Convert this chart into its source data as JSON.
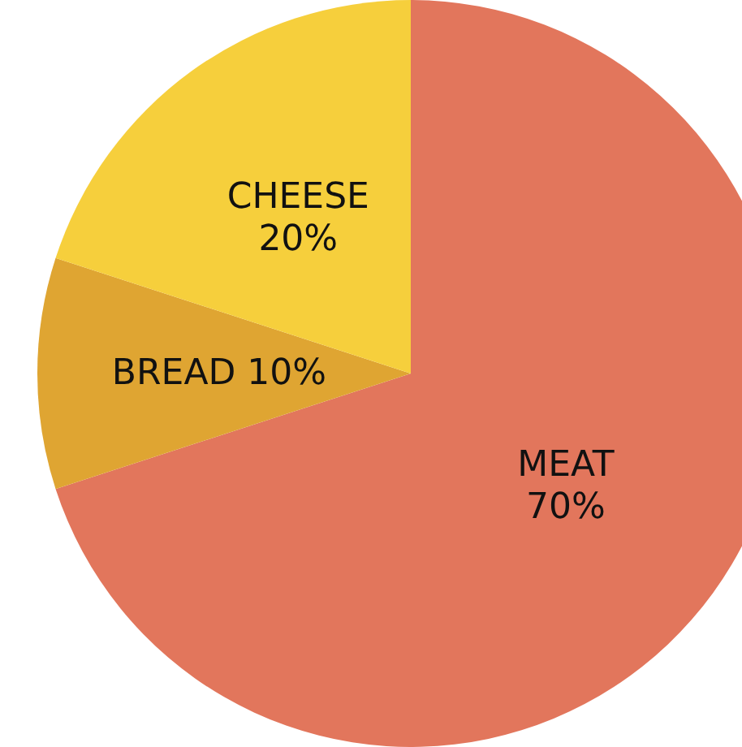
{
  "chart_data": {
    "type": "pie",
    "categories": [
      "MEAT",
      "BREAD",
      "CHEESE"
    ],
    "values": [
      70,
      10,
      20
    ],
    "value_labels": [
      "70%",
      "10%",
      "20%"
    ],
    "colors": [
      "#e2765c",
      "#dfa532",
      "#f6cf3c"
    ]
  }
}
